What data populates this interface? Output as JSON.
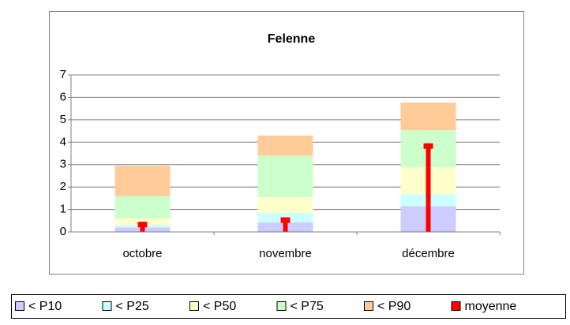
{
  "chart_data": {
    "type": "stacked-bar",
    "title": "Felenne",
    "categories": [
      "octobre",
      "novembre",
      "décembre"
    ],
    "series": [
      {
        "name": "< P10",
        "color": "#ccccff",
        "values": [
          0.2,
          0.42,
          1.15
        ]
      },
      {
        "name": "< P25",
        "color": "#ccffff",
        "values": [
          0.1,
          0.43,
          0.53
        ]
      },
      {
        "name": "< P50",
        "color": "#ffffcc",
        "values": [
          0.3,
          0.7,
          1.2
        ]
      },
      {
        "name": "< P75",
        "color": "#ccffcc",
        "values": [
          1.0,
          1.85,
          1.65
        ]
      },
      {
        "name": "< P90",
        "color": "#ffcc99",
        "values": [
          1.35,
          0.9,
          1.24
        ]
      }
    ],
    "overlay": {
      "name": "moyenne",
      "color": "#ff0000",
      "values": [
        0.45,
        0.65,
        3.95
      ]
    },
    "ylim": [
      0,
      7
    ],
    "yticks": [
      0,
      1,
      2,
      3,
      4,
      5,
      6,
      7
    ],
    "grid": true,
    "legend": "bottom"
  }
}
